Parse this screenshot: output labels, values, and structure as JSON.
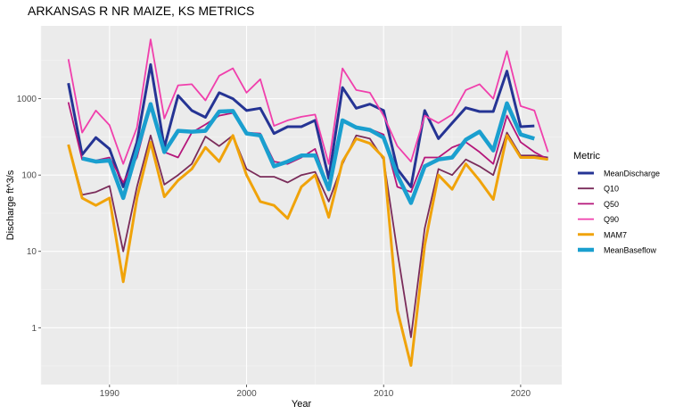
{
  "chart_data": {
    "type": "line",
    "title": "ARKANSAS R NR MAIZE, KS  METRICS",
    "xlabel": "Year",
    "ylabel": "Discharge ft^3/s",
    "y_scale": "log10",
    "xlim": [
      1985,
      2023
    ],
    "ylim": [
      0.18,
      9000
    ],
    "x_ticks": [
      1990,
      2000,
      2010,
      2020
    ],
    "x_tick_labels": [
      "1990",
      "2000",
      "2010",
      "2020"
    ],
    "y_ticks": [
      1,
      10,
      100,
      1000
    ],
    "y_tick_labels": [
      "1",
      "10",
      "100",
      "1000"
    ],
    "grid": true,
    "legend_position": "right",
    "legend_title": "Metric",
    "x": [
      1987,
      1988,
      1989,
      1990,
      1991,
      1992,
      1993,
      1994,
      1995,
      1996,
      1997,
      1998,
      1999,
      2000,
      2001,
      2002,
      2003,
      2004,
      2005,
      2006,
      2007,
      2008,
      2009,
      2010,
      2011,
      2012,
      2013,
      2014,
      2015,
      2016,
      2017,
      2018,
      2019,
      2020,
      2021,
      2022
    ],
    "series": [
      {
        "name": "MeanDischarge",
        "color": "#253494",
        "width": 3,
        "values": [
          1600,
          185,
          310,
          220,
          70,
          270,
          2800,
          230,
          1100,
          700,
          570,
          1200,
          1000,
          700,
          750,
          350,
          430,
          430,
          520,
          90,
          1400,
          750,
          850,
          700,
          120,
          70,
          700,
          300,
          480,
          760,
          680,
          680,
          2300,
          430,
          440,
          null
        ]
      },
      {
        "name": "Q10",
        "color": "#7a2c5a",
        "width": 1.8,
        "values": [
          250,
          55,
          60,
          72,
          10,
          70,
          330,
          75,
          100,
          140,
          320,
          240,
          330,
          120,
          95,
          95,
          80,
          100,
          110,
          45,
          140,
          330,
          300,
          160,
          10,
          0.75,
          20,
          120,
          100,
          160,
          130,
          100,
          360,
          180,
          180,
          170
        ]
      },
      {
        "name": "Q50",
        "color": "#b5167a",
        "width": 1.8,
        "values": [
          900,
          160,
          155,
          170,
          80,
          170,
          820,
          200,
          170,
          360,
          460,
          600,
          650,
          360,
          350,
          150,
          140,
          170,
          220,
          65,
          500,
          420,
          400,
          340,
          70,
          60,
          170,
          170,
          230,
          270,
          200,
          140,
          600,
          270,
          200,
          160
        ]
      },
      {
        "name": "Q90",
        "color": "#f03fac",
        "width": 1.8,
        "values": [
          3300,
          360,
          700,
          450,
          140,
          420,
          6000,
          550,
          1500,
          1550,
          950,
          2000,
          2500,
          1200,
          1800,
          440,
          520,
          580,
          620,
          140,
          2500,
          1300,
          1200,
          600,
          240,
          150,
          600,
          480,
          620,
          1300,
          1550,
          1000,
          4200,
          800,
          700,
          200
        ]
      },
      {
        "name": "MAM7",
        "color": "#f0a30a",
        "width": 3,
        "values": [
          250,
          50,
          40,
          50,
          4,
          50,
          270,
          52,
          85,
          120,
          230,
          150,
          330,
          100,
          45,
          40,
          27,
          70,
          100,
          28,
          150,
          300,
          260,
          170,
          1.7,
          0.32,
          12,
          100,
          65,
          140,
          85,
          48,
          330,
          170,
          170,
          160
        ]
      },
      {
        "name": "MeanBaseflow",
        "color": "#1a9fcf",
        "width": 4.5,
        "values": [
          null,
          165,
          150,
          155,
          50,
          210,
          850,
          200,
          380,
          370,
          380,
          680,
          690,
          350,
          330,
          130,
          150,
          180,
          180,
          65,
          520,
          420,
          390,
          310,
          100,
          43,
          130,
          160,
          170,
          290,
          370,
          210,
          870,
          340,
          300,
          null
        ]
      }
    ]
  }
}
